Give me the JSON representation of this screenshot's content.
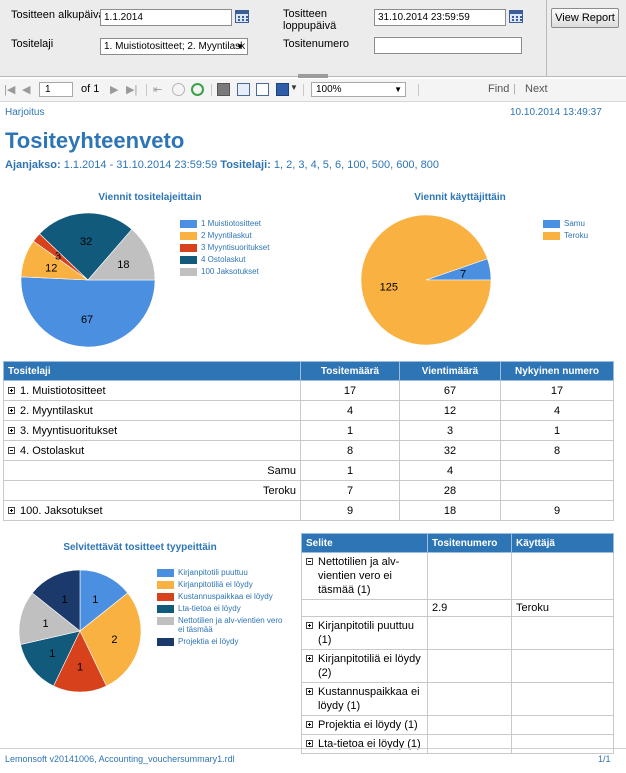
{
  "params": {
    "start_date_label": "Tositteen alkupäivä",
    "start_date_value": "1.1.2014",
    "end_date_label": "Tositteen loppupäivä",
    "end_date_value": "31.10.2014 23:59:59",
    "voucher_type_label": "Tositelaji",
    "voucher_type_value": "1. Muistiotositteet; 2. Myyntilask",
    "voucher_number_label": "Tositenumero",
    "voucher_number_value": "",
    "view_report_label": "View Report"
  },
  "toolbar": {
    "page_value": "1",
    "page_of": "of 1",
    "zoom": "100%",
    "find_label": "Find",
    "separator": "|",
    "next_label": "Next"
  },
  "report": {
    "company": "Harjoitus",
    "timestamp": "10.10.2014 13:49:37",
    "title": "Tositeyhteenveto",
    "period_label": "Ajanjakso:",
    "period_value": "1.1.2014 - 31.10.2014 23:59:59",
    "types_label": "Tositelaji:",
    "types_value": "1, 2, 3, 4, 5, 6, 100, 500, 600, 800"
  },
  "colors": {
    "accent": "#2e75b6",
    "c_blue": "#4a8fe0",
    "c_orange": "#f9b142",
    "c_red": "#d7411b",
    "c_teal": "#115a7c",
    "c_grey": "#c0c0c0",
    "c_navy": "#1b3a6b"
  },
  "chart_data": [
    {
      "type": "pie",
      "title": "Viennit tositelajeittain",
      "categories": [
        "1 Muistiotositteet",
        "2 Myyntilaskut",
        "3 Myyntisuoritukset",
        "4 Ostolaskut",
        "100 Jaksotukset"
      ],
      "values": [
        67,
        12,
        3,
        32,
        18
      ],
      "colors": [
        "#4a8fe0",
        "#f9b142",
        "#d7411b",
        "#115a7c",
        "#c0c0c0"
      ],
      "legend": "right"
    },
    {
      "type": "pie",
      "title": "Viennit käyttäjittäin",
      "categories": [
        "Samu",
        "Teroku"
      ],
      "values": [
        7,
        125
      ],
      "colors": [
        "#4a8fe0",
        "#f9b142"
      ],
      "legend": "right"
    },
    {
      "type": "pie",
      "title": "Selvitettävät tositteet tyypeittäin",
      "categories": [
        "Kirjanpitotili puuttuu",
        "Kirjanpitotiliä ei löydy",
        "Kustannuspaikkaa ei löydy",
        "Lta-tietoa ei löydy",
        "Nettotilien ja alv-vientien vero ei täsmää",
        "Projektia ei löydy"
      ],
      "values": [
        1,
        2,
        1,
        1,
        1,
        1
      ],
      "colors": [
        "#4a8fe0",
        "#f9b142",
        "#d7411b",
        "#115a7c",
        "#c0c0c0",
        "#1b3a6b"
      ],
      "legend": "right"
    }
  ],
  "summary_table": {
    "headers": [
      "Tositelaji",
      "Tositemäärä",
      "Vientimäärä",
      "Nykyinen numero"
    ],
    "rows": [
      {
        "label": "1. Muistiotositteet",
        "count": "17",
        "entries": "67",
        "current": "17",
        "expand": "plus"
      },
      {
        "label": "2. Myyntilaskut",
        "count": "4",
        "entries": "12",
        "current": "4",
        "expand": "plus"
      },
      {
        "label": "3. Myyntisuoritukset",
        "count": "1",
        "entries": "3",
        "current": "1",
        "expand": "plus"
      },
      {
        "label": "4. Ostolaskut",
        "count": "8",
        "entries": "32",
        "current": "8",
        "expand": "minus"
      },
      {
        "label": "Samu",
        "count": "1",
        "entries": "4",
        "current": "",
        "expand": "sub"
      },
      {
        "label": "Teroku",
        "count": "7",
        "entries": "28",
        "current": "",
        "expand": "sub"
      },
      {
        "label": "100. Jaksotukset",
        "count": "9",
        "entries": "18",
        "current": "9",
        "expand": "plus"
      }
    ]
  },
  "issues_table": {
    "headers": [
      "Selite",
      "Tositenumero",
      "Käyttäjä"
    ],
    "rows": [
      {
        "label": "Nettotilien ja alv-vientien vero ei täsmää (1)",
        "number": "",
        "user": "",
        "expand": "minus"
      },
      {
        "label": "",
        "number": "2.9",
        "user": "Teroku",
        "expand": "none"
      },
      {
        "label": "Kirjanpitotili puuttuu (1)",
        "number": "",
        "user": "",
        "expand": "plus"
      },
      {
        "label": "Kirjanpitotiliä  ei löydy (2)",
        "number": "",
        "user": "",
        "expand": "plus"
      },
      {
        "label": "Kustannuspaikkaa ei löydy (1)",
        "number": "",
        "user": "",
        "expand": "plus"
      },
      {
        "label": "Projektia ei löydy (1)",
        "number": "",
        "user": "",
        "expand": "plus"
      },
      {
        "label": "Lta-tietoa ei löydy (1)",
        "number": "",
        "user": "",
        "expand": "plus"
      }
    ]
  },
  "footer": {
    "left": "Lemonsoft v20141006, Accounting_vouchersummary1.rdl",
    "right": "1/1"
  }
}
